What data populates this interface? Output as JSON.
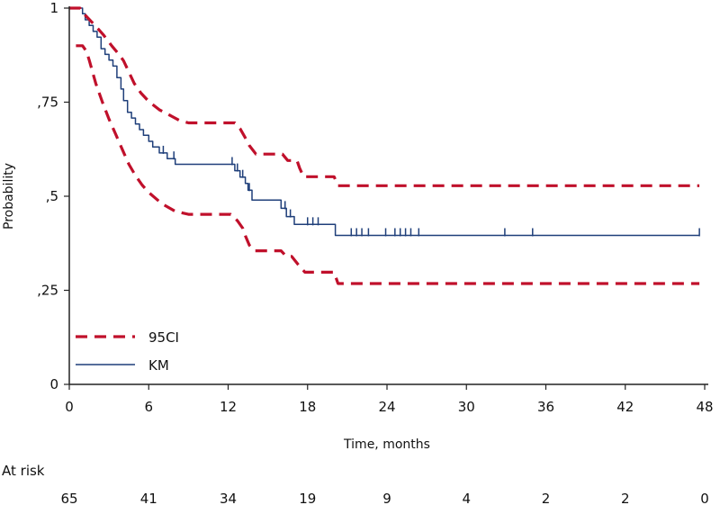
{
  "chart_data": {
    "type": "line",
    "xlabel": "Time, months",
    "ylabel": "Probability",
    "xlim": [
      0,
      48
    ],
    "ylim": [
      0,
      1
    ],
    "x_ticks": [
      0,
      6,
      12,
      18,
      24,
      30,
      36,
      42,
      48
    ],
    "x_tick_labels": [
      "0",
      "6",
      "12",
      "18",
      "24",
      "30",
      "36",
      "42",
      "48"
    ],
    "y_ticks": [
      0,
      0.25,
      0.5,
      0.75,
      1
    ],
    "y_tick_labels": [
      "0",
      ",25",
      ",5",
      ",75",
      "1"
    ],
    "grid": false,
    "legend_position": "bottom-left",
    "series": [
      {
        "name": "KM",
        "color": "#1f3f7a",
        "style": "solid",
        "points": [
          [
            0,
            1
          ],
          [
            1.0,
            1
          ],
          [
            1.0,
            0.985
          ],
          [
            1.2,
            0.985
          ],
          [
            1.2,
            0.969
          ],
          [
            1.5,
            0.969
          ],
          [
            1.5,
            0.954
          ],
          [
            1.8,
            0.954
          ],
          [
            1.8,
            0.938
          ],
          [
            2.1,
            0.938
          ],
          [
            2.1,
            0.923
          ],
          [
            2.4,
            0.923
          ],
          [
            2.4,
            0.892
          ],
          [
            2.7,
            0.892
          ],
          [
            2.7,
            0.877
          ],
          [
            3.0,
            0.877
          ],
          [
            3.0,
            0.862
          ],
          [
            3.3,
            0.862
          ],
          [
            3.3,
            0.846
          ],
          [
            3.6,
            0.846
          ],
          [
            3.6,
            0.815
          ],
          [
            3.9,
            0.815
          ],
          [
            3.9,
            0.785
          ],
          [
            4.1,
            0.785
          ],
          [
            4.1,
            0.754
          ],
          [
            4.4,
            0.754
          ],
          [
            4.4,
            0.723
          ],
          [
            4.7,
            0.723
          ],
          [
            4.7,
            0.708
          ],
          [
            5.0,
            0.708
          ],
          [
            5.0,
            0.692
          ],
          [
            5.3,
            0.692
          ],
          [
            5.3,
            0.677
          ],
          [
            5.6,
            0.677
          ],
          [
            5.6,
            0.662
          ],
          [
            6.0,
            0.662
          ],
          [
            6.0,
            0.646
          ],
          [
            6.3,
            0.646
          ],
          [
            6.3,
            0.631
          ],
          [
            6.8,
            0.631
          ],
          [
            6.8,
            0.615
          ],
          [
            7.4,
            0.615
          ],
          [
            7.4,
            0.6
          ],
          [
            8.0,
            0.6
          ],
          [
            8.0,
            0.585
          ],
          [
            12.5,
            0.585
          ],
          [
            12.5,
            0.568
          ],
          [
            12.9,
            0.568
          ],
          [
            12.9,
            0.551
          ],
          [
            13.3,
            0.551
          ],
          [
            13.3,
            0.534
          ],
          [
            13.5,
            0.534
          ],
          [
            13.5,
            0.516
          ],
          [
            13.8,
            0.516
          ],
          [
            13.8,
            0.49
          ],
          [
            16.0,
            0.49
          ],
          [
            16.0,
            0.468
          ],
          [
            16.4,
            0.468
          ],
          [
            16.4,
            0.446
          ],
          [
            17.0,
            0.446
          ],
          [
            17.0,
            0.425
          ],
          [
            20.1,
            0.425
          ],
          [
            20.1,
            0.396
          ],
          [
            47.6,
            0.396
          ]
        ],
        "censor_marks": [
          7.1,
          7.9,
          12.3,
          12.7,
          13.1,
          13.6,
          16.3,
          16.7,
          18.0,
          18.4,
          18.8,
          21.3,
          21.7,
          22.1,
          22.6,
          23.9,
          24.6,
          25.0,
          25.4,
          25.8,
          26.4,
          32.9,
          35.0,
          47.6
        ]
      },
      {
        "name": "95CI",
        "color": "#c0102b",
        "style": "dashed",
        "points": [
          [
            0,
            1
          ],
          [
            0.8,
            1
          ],
          [
            1.1,
            0.985
          ],
          [
            1.5,
            0.97
          ],
          [
            2.0,
            0.952
          ],
          [
            2.6,
            0.928
          ],
          [
            3.2,
            0.9
          ],
          [
            3.8,
            0.875
          ],
          [
            4.1,
            0.86
          ],
          [
            4.5,
            0.83
          ],
          [
            4.9,
            0.8
          ],
          [
            5.4,
            0.775
          ],
          [
            6.0,
            0.752
          ],
          [
            6.8,
            0.73
          ],
          [
            7.6,
            0.715
          ],
          [
            8.3,
            0.702
          ],
          [
            9.0,
            0.695
          ],
          [
            12.5,
            0.695
          ],
          [
            12.9,
            0.68
          ],
          [
            13.3,
            0.655
          ],
          [
            13.6,
            0.635
          ],
          [
            14.1,
            0.612
          ],
          [
            16.1,
            0.612
          ],
          [
            16.5,
            0.595
          ],
          [
            17.2,
            0.595
          ],
          [
            17.4,
            0.575
          ],
          [
            17.7,
            0.552
          ],
          [
            20.0,
            0.552
          ],
          [
            20.3,
            0.528
          ],
          [
            47.6,
            0.528
          ]
        ]
      },
      {
        "name": "95CI lower",
        "color": "#c0102b",
        "style": "dashed",
        "points": [
          [
            0.5,
            0.9
          ],
          [
            1.0,
            0.9
          ],
          [
            1.3,
            0.885
          ],
          [
            1.5,
            0.862
          ],
          [
            2.0,
            0.8
          ],
          [
            2.5,
            0.75
          ],
          [
            3.0,
            0.705
          ],
          [
            3.5,
            0.665
          ],
          [
            4.0,
            0.625
          ],
          [
            4.5,
            0.585
          ],
          [
            5.0,
            0.555
          ],
          [
            5.5,
            0.53
          ],
          [
            6.0,
            0.51
          ],
          [
            7.0,
            0.48
          ],
          [
            8.0,
            0.46
          ],
          [
            9.0,
            0.452
          ],
          [
            12.2,
            0.452
          ],
          [
            12.7,
            0.435
          ],
          [
            13.1,
            0.415
          ],
          [
            13.3,
            0.395
          ],
          [
            13.6,
            0.37
          ],
          [
            14.0,
            0.355
          ],
          [
            16.0,
            0.355
          ],
          [
            16.4,
            0.34
          ],
          [
            16.8,
            0.34
          ],
          [
            17.3,
            0.318
          ],
          [
            17.8,
            0.298
          ],
          [
            20.0,
            0.298
          ],
          [
            20.3,
            0.268
          ],
          [
            47.6,
            0.268
          ]
        ]
      }
    ],
    "legend": [
      {
        "label": "95CI",
        "style": "dashed",
        "color": "#c0102b"
      },
      {
        "label": "KM",
        "style": "solid",
        "color": "#1f3f7a"
      }
    ],
    "at_risk": {
      "title": "At risk",
      "times": [
        0,
        6,
        12,
        18,
        24,
        30,
        36,
        42,
        48
      ],
      "counts": [
        "65",
        "41",
        "34",
        "19",
        "9",
        "4",
        "2",
        "2",
        "0"
      ]
    }
  }
}
